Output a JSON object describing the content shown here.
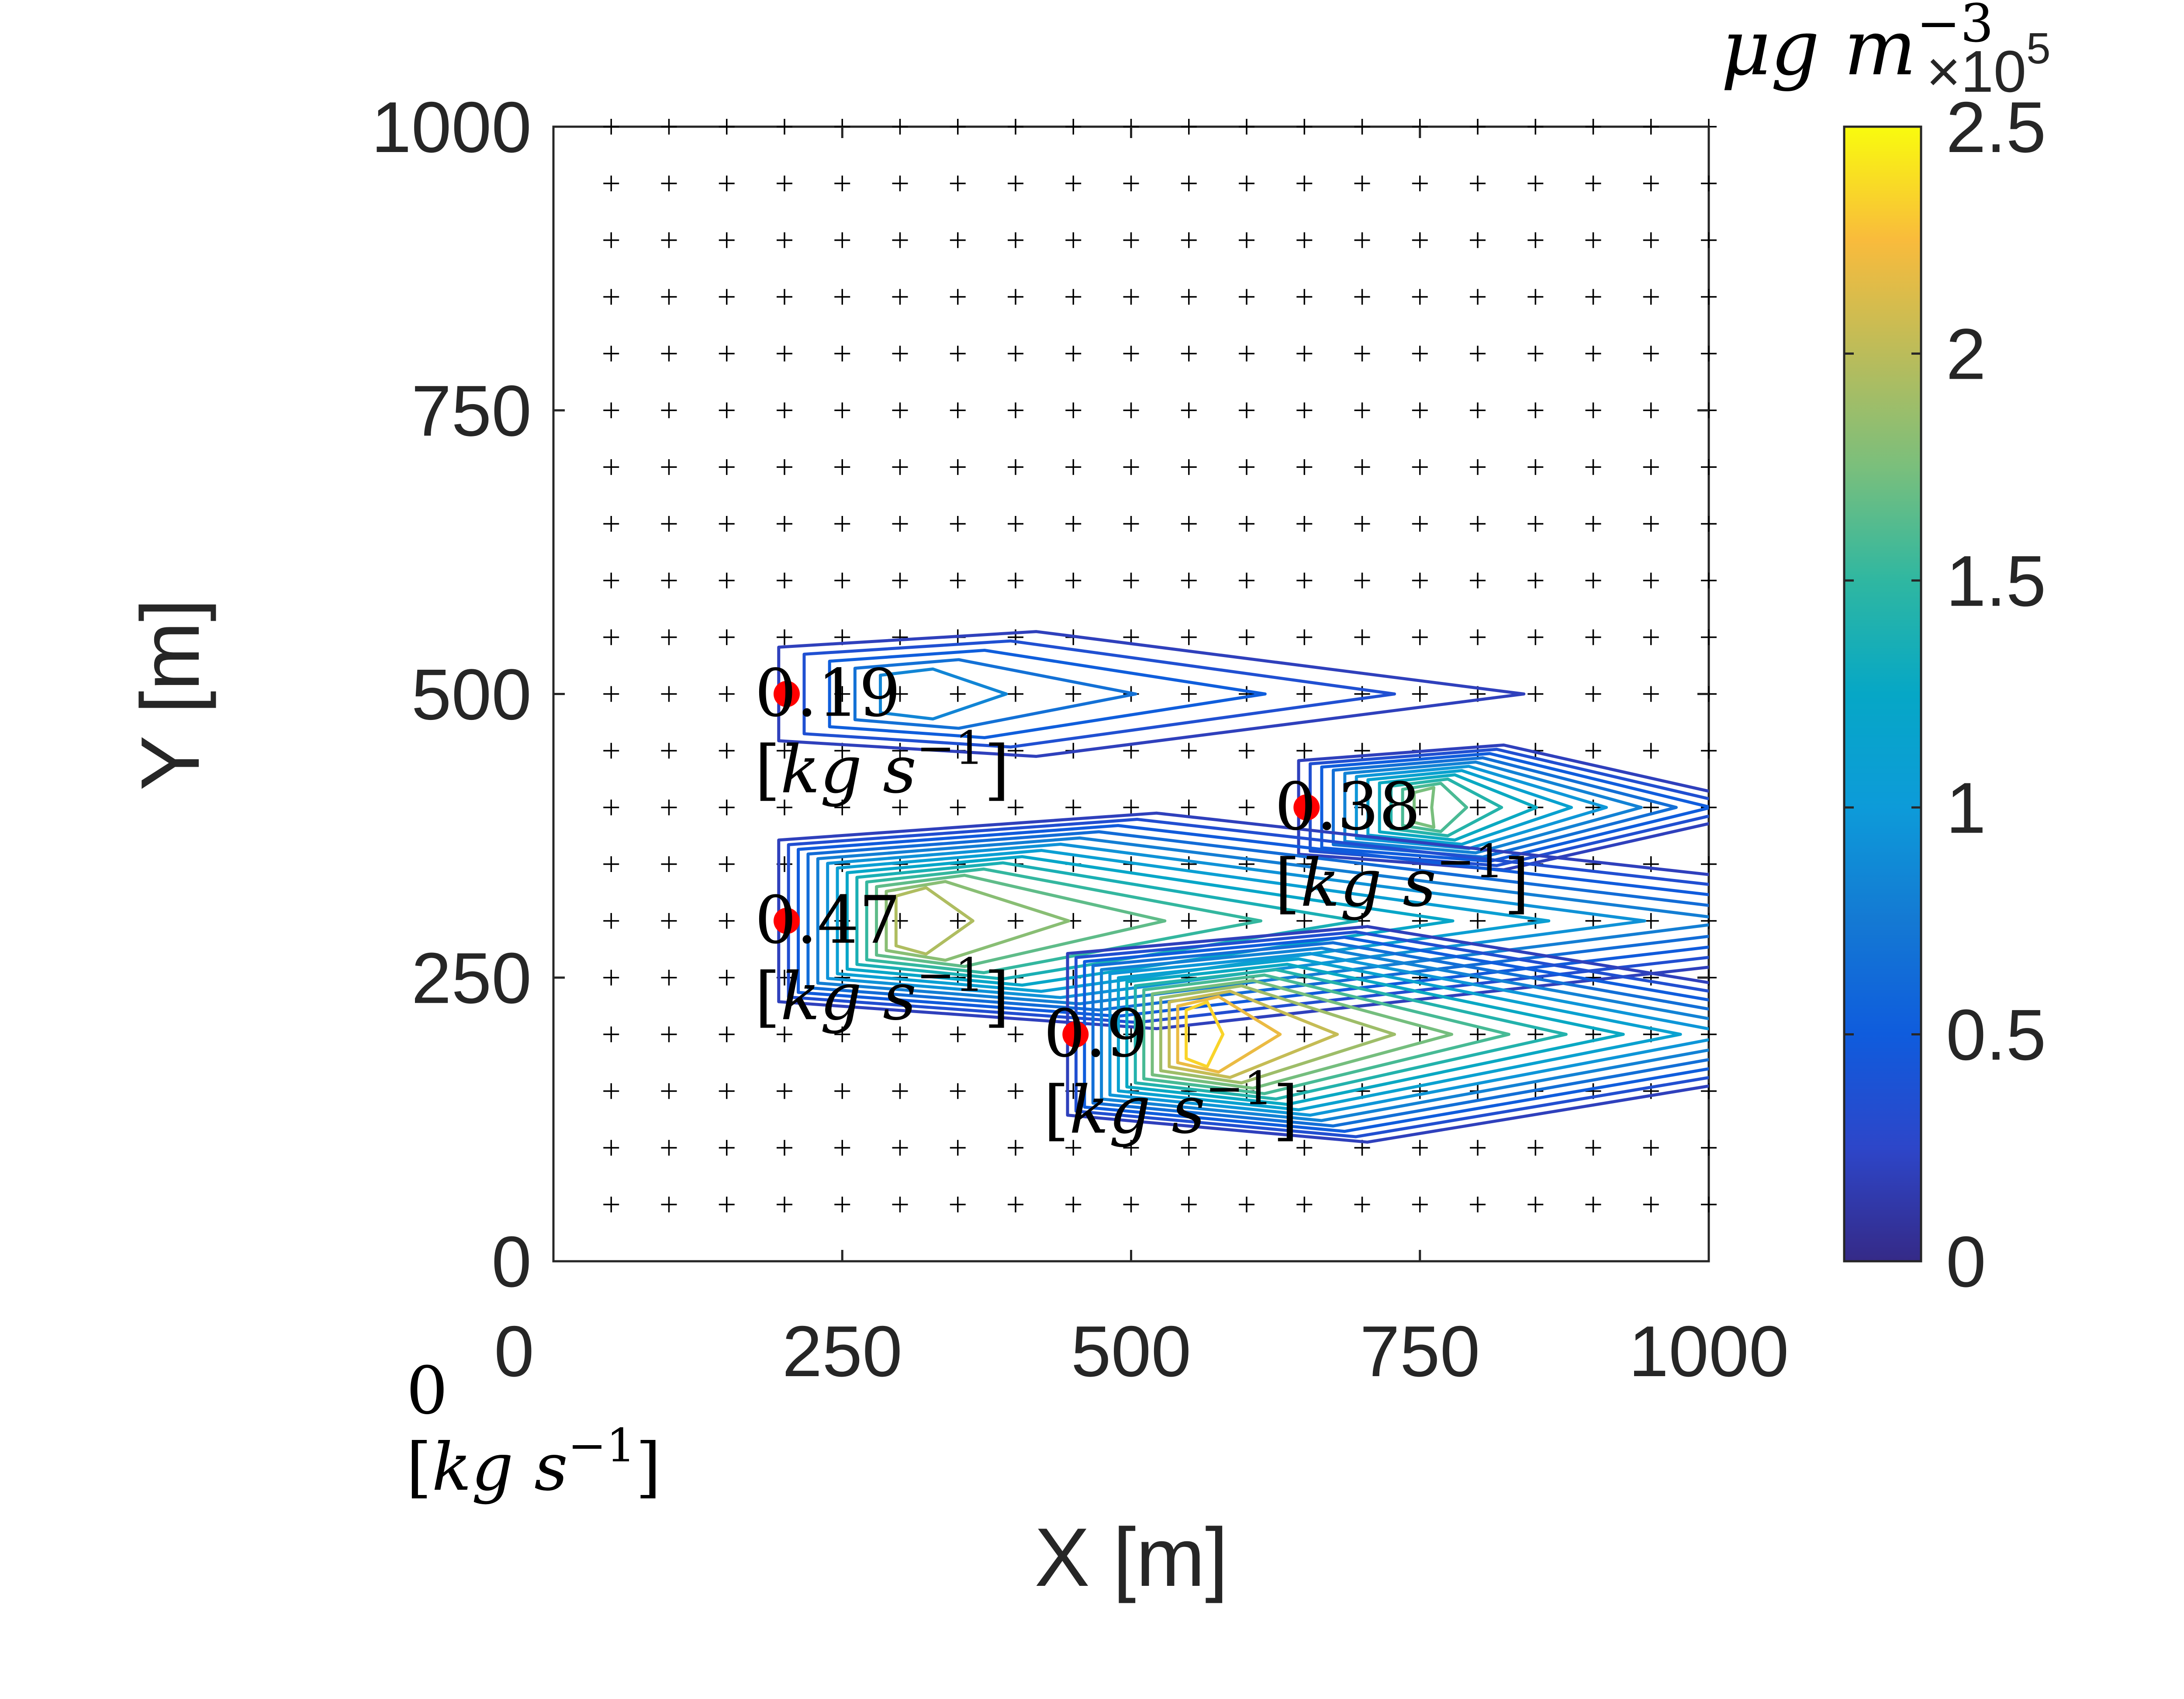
{
  "chart_data": {
    "type": "contour",
    "xlabel": "X [m]",
    "ylabel": "Y [m]",
    "xlim": [
      0,
      1000
    ],
    "ylim": [
      0,
      1000
    ],
    "x_ticks": [
      "0",
      "250",
      "500",
      "750",
      "1000"
    ],
    "y_ticks": [
      "0",
      "250",
      "500",
      "750",
      "1000"
    ],
    "colorbar": {
      "title": "μg m",
      "title_superscript": "−3",
      "multiplier": "×10",
      "multiplier_exponent": "5",
      "range": [
        0,
        2.5
      ],
      "ticks": [
        "0",
        "0.5",
        "1",
        "1.5",
        "2",
        "2.5"
      ],
      "colormap": "parula"
    },
    "grid_marker": "+",
    "grid_spacing": 50,
    "unit_open": "[",
    "unit_kg": "kg",
    "unit_s": "s",
    "unit_exp": "−1",
    "unit_close": "]",
    "sources": [
      {
        "x": 200,
        "y": 500,
        "label": "0.19",
        "peak": 1.0
      },
      {
        "x": 650,
        "y": 400,
        "label": "0.38",
        "peak": 1.9
      },
      {
        "x": 200,
        "y": 300,
        "label": "0.47",
        "peak": 2.1
      },
      {
        "x": 450,
        "y": 200,
        "label": "0.9",
        "peak": 2.5
      }
    ],
    "extra_label": {
      "x": -100,
      "y": -100,
      "label": "0"
    }
  },
  "colors": {
    "source_marker": "#ff0000",
    "axis": "#262626",
    "grid_marker": "#000000"
  }
}
